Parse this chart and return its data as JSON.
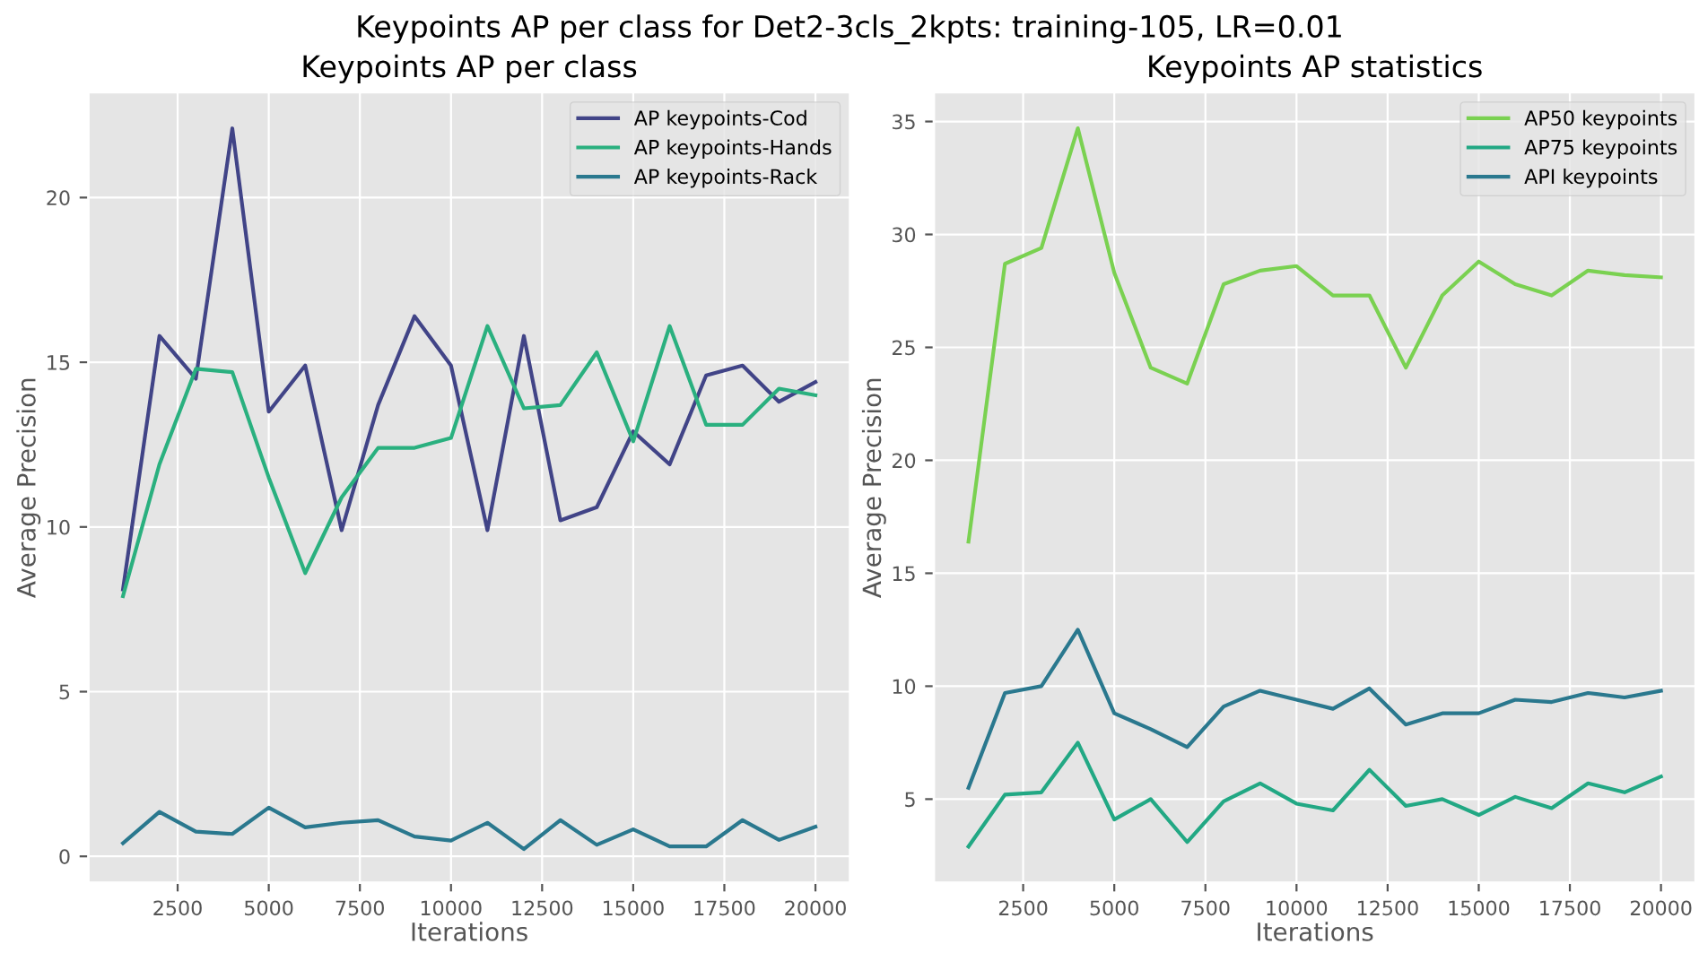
{
  "chart_data": [
    {
      "type": "line",
      "title": "Keypoints AP per class",
      "xlabel": "Iterations",
      "ylabel": "Average Precision",
      "x": [
        1000,
        2000,
        3000,
        4000,
        5000,
        6000,
        7000,
        8000,
        9000,
        10000,
        11000,
        12000,
        13000,
        14000,
        15000,
        16000,
        17000,
        18000,
        19000,
        20000
      ],
      "series": [
        {
          "name": "AP keypoints-Cod",
          "color": "#414487",
          "values": [
            8.1,
            15.8,
            14.5,
            22.1,
            13.5,
            14.9,
            9.9,
            13.7,
            16.4,
            14.9,
            9.9,
            15.8,
            10.2,
            10.6,
            12.9,
            11.9,
            14.6,
            14.9,
            13.8,
            14.4
          ]
        },
        {
          "name": "AP keypoints-Hands",
          "color": "#2ab07f",
          "values": [
            7.9,
            11.9,
            14.8,
            14.7,
            11.5,
            8.6,
            10.9,
            12.4,
            12.4,
            12.7,
            16.1,
            13.6,
            13.7,
            15.3,
            12.6,
            16.1,
            13.1,
            13.1,
            14.2,
            14.0
          ]
        },
        {
          "name": "AP keypoints-Rack",
          "color": "#2a788e",
          "values": [
            0.4,
            1.35,
            0.75,
            0.68,
            1.48,
            0.88,
            1.02,
            1.1,
            0.6,
            0.48,
            1.02,
            0.22,
            1.1,
            0.35,
            0.82,
            0.3,
            0.3,
            1.1,
            0.5,
            0.9
          ]
        }
      ],
      "xlim": [
        50,
        20950
      ],
      "xticks": [
        2500,
        5000,
        7500,
        10000,
        12500,
        15000,
        17500,
        20000
      ],
      "ylim": [
        -0.8,
        23.2
      ],
      "yticks": [
        0,
        5,
        10,
        15,
        20
      ],
      "grid": true,
      "legend": "top right"
    },
    {
      "type": "line",
      "title": "Keypoints AP statistics",
      "xlabel": "Iterations",
      "ylabel": "Average Precision",
      "x": [
        1000,
        2000,
        3000,
        4000,
        5000,
        6000,
        7000,
        8000,
        9000,
        10000,
        11000,
        12000,
        13000,
        14000,
        15000,
        16000,
        17000,
        18000,
        19000,
        20000
      ],
      "series": [
        {
          "name": "AP50 keypoints",
          "color": "#7ad151",
          "values": [
            16.4,
            28.7,
            29.4,
            34.7,
            28.3,
            24.1,
            23.4,
            27.8,
            28.4,
            28.6,
            27.3,
            27.3,
            24.1,
            27.3,
            28.8,
            27.8,
            27.3,
            28.4,
            28.2,
            28.1
          ]
        },
        {
          "name": "AP75 keypoints",
          "color": "#22a884",
          "values": [
            2.9,
            5.2,
            5.3,
            7.5,
            4.1,
            5.0,
            3.1,
            4.9,
            5.7,
            4.8,
            4.5,
            6.3,
            4.7,
            5.0,
            4.3,
            5.1,
            4.6,
            5.7,
            5.3,
            6.0
          ]
        },
        {
          "name": "API keypoints",
          "color": "#2a788e",
          "values": [
            5.5,
            9.7,
            10.0,
            12.5,
            8.8,
            8.1,
            7.3,
            9.1,
            9.8,
            9.4,
            9.0,
            9.9,
            8.3,
            8.8,
            8.8,
            9.4,
            9.3,
            9.7,
            9.5,
            9.8
          ]
        }
      ],
      "xlim": [
        50,
        20950
      ],
      "xticks": [
        2500,
        5000,
        7500,
        10000,
        12500,
        15000,
        17500,
        20000
      ],
      "ylim": [
        1.3,
        36.3
      ],
      "yticks": [
        5,
        10,
        15,
        20,
        25,
        30,
        35
      ],
      "grid": true,
      "legend": "top right",
      "annotations": [
        "Keypoints AP per class for Det2-3cls_2kpts: training-105, LR=0.01"
      ]
    }
  ]
}
